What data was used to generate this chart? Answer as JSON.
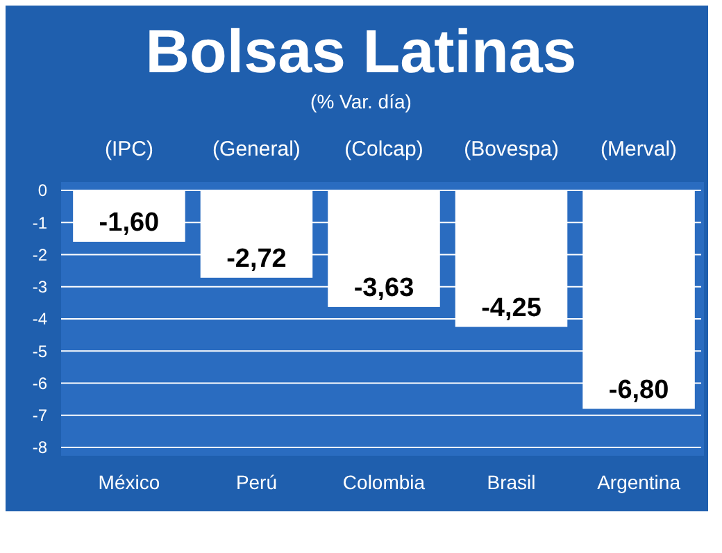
{
  "chart_data": {
    "type": "bar",
    "title": "Bolsas Latinas",
    "subtitle": "(% Var. día)",
    "categories": [
      "México",
      "Perú",
      "Colombia",
      "Brasil",
      "Argentina"
    ],
    "values": [
      -1.6,
      -2.72,
      -3.63,
      -4.25,
      -6.8
    ],
    "value_labels": [
      "-1,60",
      "-2,72",
      "-3,63",
      "-4,25",
      "-6,80"
    ],
    "color": "#ffffff",
    "annotations": [
      "(IPC)",
      "(General)",
      "(Colcap)",
      "(Bovespa)",
      "(Merval)"
    ],
    "ylim": [
      -8,
      0
    ],
    "yticks": [
      0,
      -1,
      -2,
      -3,
      -4,
      -5,
      -6,
      -7,
      -8
    ],
    "grid": "y"
  }
}
